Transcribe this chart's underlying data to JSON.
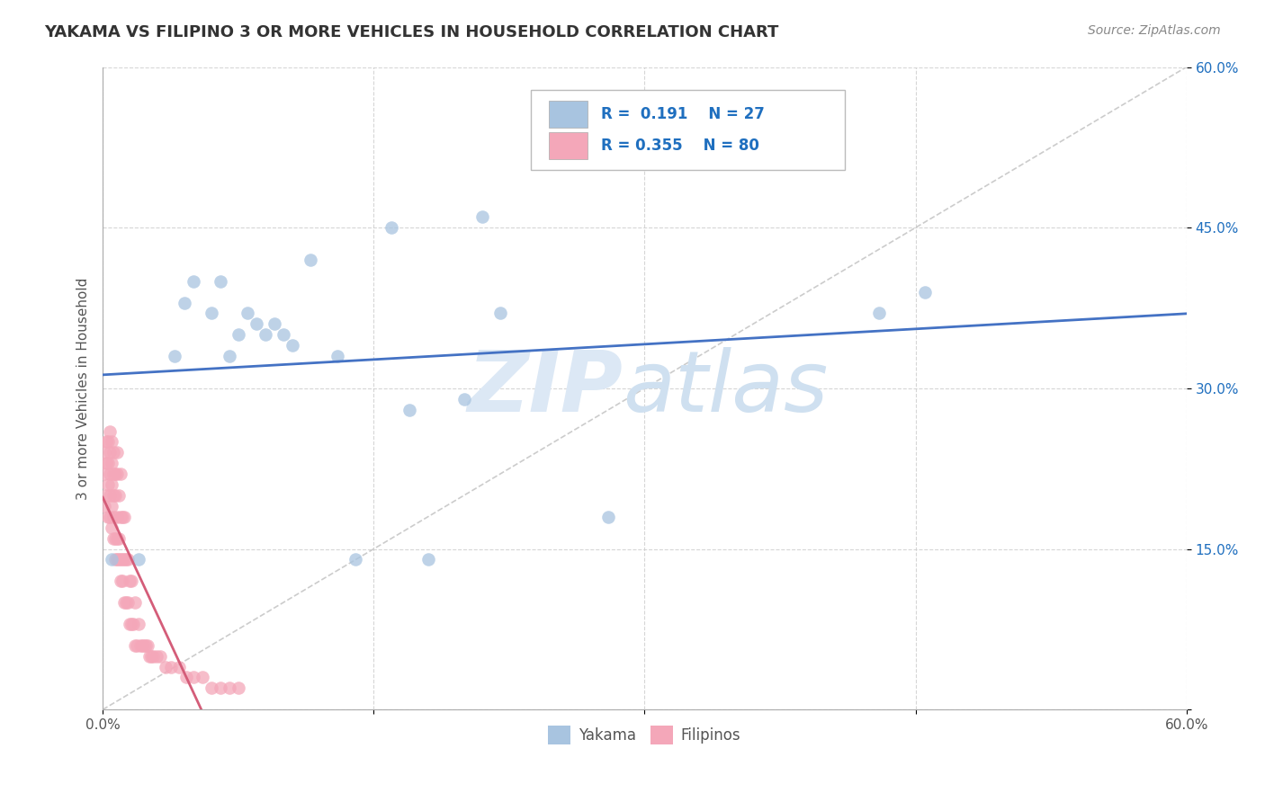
{
  "title": "YAKAMA VS FILIPINO 3 OR MORE VEHICLES IN HOUSEHOLD CORRELATION CHART",
  "source": "Source: ZipAtlas.com",
  "ylabel": "3 or more Vehicles in Household",
  "r_yakama": 0.191,
  "n_yakama": 27,
  "r_filipino": 0.355,
  "n_filipino": 80,
  "xmin": 0.0,
  "xmax": 0.6,
  "ymin": 0.0,
  "ymax": 0.6,
  "color_yakama": "#a8c4e0",
  "color_filipino": "#f4a7b9",
  "color_yakama_line": "#4472c4",
  "color_filipino_line": "#d45d79",
  "color_r_value": "#1f6fbf",
  "background_color": "#ffffff",
  "grid_color": "#cccccc",
  "yakama_x": [
    0.005,
    0.02,
    0.04,
    0.045,
    0.05,
    0.06,
    0.065,
    0.07,
    0.075,
    0.08,
    0.085,
    0.09,
    0.095,
    0.1,
    0.105,
    0.115,
    0.13,
    0.14,
    0.16,
    0.17,
    0.18,
    0.2,
    0.21,
    0.22,
    0.28,
    0.43,
    0.455
  ],
  "yakama_y": [
    0.14,
    0.14,
    0.33,
    0.38,
    0.4,
    0.37,
    0.4,
    0.33,
    0.35,
    0.37,
    0.36,
    0.35,
    0.36,
    0.35,
    0.34,
    0.42,
    0.33,
    0.14,
    0.45,
    0.28,
    0.14,
    0.29,
    0.46,
    0.37,
    0.18,
    0.37,
    0.39
  ],
  "filipino_x": [
    0.001,
    0.001,
    0.001,
    0.002,
    0.002,
    0.002,
    0.003,
    0.003,
    0.003,
    0.003,
    0.004,
    0.004,
    0.004,
    0.004,
    0.004,
    0.005,
    0.005,
    0.005,
    0.005,
    0.005,
    0.006,
    0.006,
    0.006,
    0.006,
    0.006,
    0.007,
    0.007,
    0.007,
    0.007,
    0.008,
    0.008,
    0.008,
    0.008,
    0.008,
    0.009,
    0.009,
    0.009,
    0.01,
    0.01,
    0.01,
    0.01,
    0.011,
    0.011,
    0.011,
    0.012,
    0.012,
    0.012,
    0.013,
    0.013,
    0.014,
    0.014,
    0.015,
    0.015,
    0.016,
    0.016,
    0.017,
    0.018,
    0.018,
    0.019,
    0.02,
    0.021,
    0.022,
    0.023,
    0.024,
    0.025,
    0.026,
    0.027,
    0.028,
    0.03,
    0.032,
    0.035,
    0.038,
    0.042,
    0.046,
    0.05,
    0.055,
    0.06,
    0.065,
    0.07,
    0.075
  ],
  "filipino_y": [
    0.19,
    0.22,
    0.24,
    0.2,
    0.23,
    0.25,
    0.18,
    0.21,
    0.23,
    0.25,
    0.18,
    0.2,
    0.22,
    0.24,
    0.26,
    0.17,
    0.19,
    0.21,
    0.23,
    0.25,
    0.16,
    0.18,
    0.2,
    0.22,
    0.24,
    0.14,
    0.16,
    0.2,
    0.22,
    0.14,
    0.16,
    0.18,
    0.22,
    0.24,
    0.14,
    0.16,
    0.2,
    0.12,
    0.14,
    0.18,
    0.22,
    0.12,
    0.14,
    0.18,
    0.1,
    0.14,
    0.18,
    0.1,
    0.14,
    0.1,
    0.14,
    0.08,
    0.12,
    0.08,
    0.12,
    0.08,
    0.06,
    0.1,
    0.06,
    0.08,
    0.06,
    0.06,
    0.06,
    0.06,
    0.06,
    0.05,
    0.05,
    0.05,
    0.05,
    0.05,
    0.04,
    0.04,
    0.04,
    0.03,
    0.03,
    0.03,
    0.02,
    0.02,
    0.02,
    0.02
  ]
}
